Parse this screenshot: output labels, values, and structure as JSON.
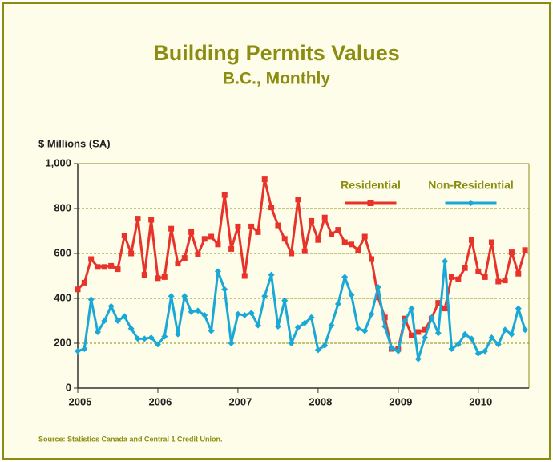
{
  "chart_data": {
    "type": "line",
    "title": "Building Permits Values",
    "subtitle": "B.C., Monthly",
    "y_label": "$ Millions (SA)",
    "source": "Source: Statistics Canada and Central 1 Credit Union.",
    "categories": [
      "2005",
      null,
      null,
      null,
      null,
      null,
      null,
      null,
      null,
      null,
      null,
      null,
      "2006",
      null,
      null,
      null,
      null,
      null,
      null,
      null,
      null,
      null,
      null,
      null,
      "2007",
      null,
      null,
      null,
      null,
      null,
      null,
      null,
      null,
      null,
      null,
      null,
      "2008",
      null,
      null,
      null,
      null,
      null,
      null,
      null,
      null,
      null,
      null,
      null,
      "2009",
      null,
      null,
      null,
      null,
      null,
      null,
      null,
      null,
      null,
      null,
      null,
      "2010",
      null,
      null,
      null,
      null,
      null,
      null,
      null
    ],
    "series": [
      {
        "name": "Residential",
        "color": "#e8332b",
        "marker": "square",
        "values": [
          440,
          470,
          575,
          540,
          540,
          545,
          530,
          680,
          600,
          755,
          505,
          750,
          490,
          495,
          710,
          555,
          580,
          695,
          595,
          665,
          675,
          640,
          860,
          620,
          720,
          500,
          720,
          695,
          930,
          805,
          725,
          665,
          600,
          840,
          610,
          745,
          660,
          760,
          685,
          705,
          650,
          640,
          615,
          675,
          575,
          405,
          315,
          175,
          175,
          310,
          235,
          250,
          260,
          310,
          380,
          355,
          495,
          485,
          535,
          660,
          520,
          495,
          650,
          475,
          480,
          605,
          510,
          615
        ]
      },
      {
        "name": "Non-Residential",
        "color": "#1aa9d6",
        "marker": "diamond",
        "values": [
          165,
          175,
          395,
          250,
          300,
          365,
          300,
          320,
          265,
          220,
          220,
          225,
          195,
          230,
          410,
          240,
          410,
          340,
          345,
          325,
          255,
          520,
          440,
          200,
          330,
          325,
          335,
          280,
          410,
          505,
          275,
          390,
          200,
          270,
          290,
          315,
          170,
          190,
          280,
          375,
          495,
          415,
          265,
          255,
          330,
          450,
          275,
          180,
          165,
          300,
          355,
          130,
          225,
          315,
          245,
          565,
          175,
          195,
          240,
          220,
          155,
          165,
          225,
          195,
          260,
          240,
          355,
          260
        ]
      }
    ],
    "ylim": [
      0,
      1000
    ],
    "yticks": [
      0,
      200,
      400,
      600,
      800,
      {
        "value": 1000,
        "label": "1,000"
      }
    ],
    "grid": true,
    "legend": "upper right"
  }
}
